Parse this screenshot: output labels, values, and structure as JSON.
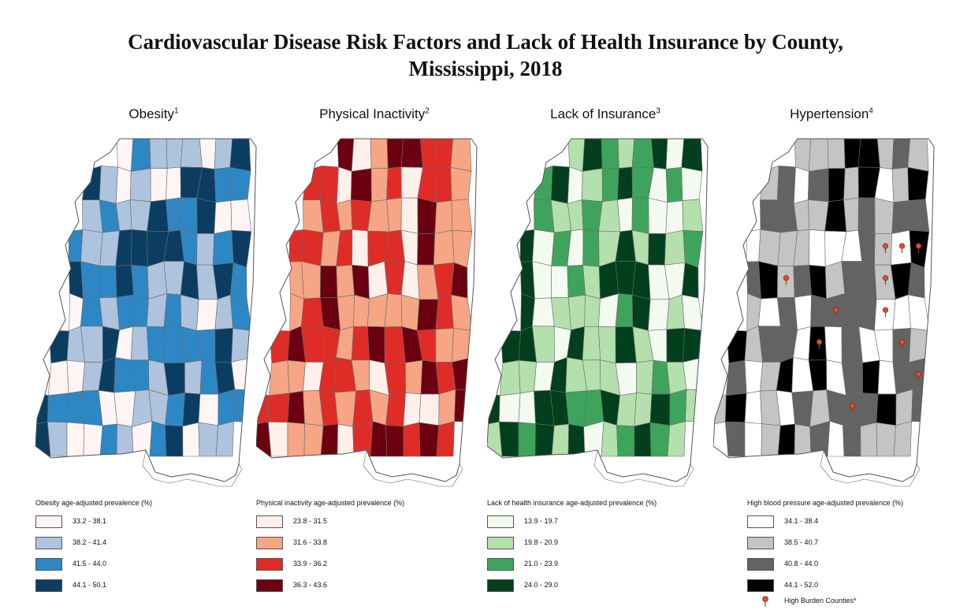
{
  "title": {
    "line1": "Cardiovascular Disease Risk Factors and Lack of Health Insurance by County,",
    "line2": "Mississippi, 2018"
  },
  "panels": [
    {
      "id": "obesity",
      "title": "Obesity",
      "superscript": "1",
      "legend_title": "Obesity age-adjusted prevalence (%)",
      "classes": [
        {
          "label": "33.2 - 38.1",
          "color": "#fff5f5"
        },
        {
          "label": "38.2 - 41.4",
          "color": "#aec3de"
        },
        {
          "label": "41.5 - 44.0",
          "color": "#2d87c4"
        },
        {
          "label": "44.1 - 50.1",
          "color": "#0b3d63"
        }
      ],
      "county_classes": [
        0,
        2,
        1,
        1,
        1,
        0,
        1,
        3,
        3,
        1,
        0,
        1,
        0,
        0,
        3,
        3,
        2,
        2,
        1,
        2,
        1,
        1,
        3,
        2,
        2,
        3,
        0,
        0,
        2,
        1,
        1,
        3,
        3,
        3,
        3,
        2,
        1,
        2,
        3,
        3,
        2,
        2,
        3,
        2,
        1,
        1,
        3,
        1,
        3,
        2,
        0,
        2,
        1,
        2,
        2,
        1,
        2,
        1,
        0,
        1,
        2,
        3,
        1,
        1,
        3,
        0,
        1,
        2,
        2,
        2,
        2,
        3,
        1,
        0,
        0,
        1,
        3,
        2,
        2,
        1,
        3,
        1,
        2,
        3,
        0,
        3,
        2,
        2,
        2,
        0,
        0,
        1,
        1,
        2,
        3,
        0,
        2,
        2,
        3,
        1,
        0,
        0,
        2,
        1,
        0,
        2,
        3,
        0,
        1,
        1,
        1,
        2,
        1,
        2,
        2,
        0,
        0,
        3,
        0,
        2,
        2,
        1,
        1,
        0,
        2,
        2,
        1,
        0,
        1,
        1,
        3,
        3,
        3,
        3,
        0,
        2,
        1,
        2,
        2,
        0
      ]
    },
    {
      "id": "inactivity",
      "title": "Physical Inactivity",
      "superscript": "2",
      "legend_title": "Physical inactivity age-adjusted prevalence (%)",
      "classes": [
        {
          "label": "23.8 - 31.5",
          "color": "#fff0eb"
        },
        {
          "label": "31.6 - 33.8",
          "color": "#f6a585"
        },
        {
          "label": "33.9 - 36.2",
          "color": "#e02c27"
        },
        {
          "label": "36.3 - 43.6",
          "color": "#6b0010"
        }
      ],
      "county_classes": [
        3,
        0,
        1,
        3,
        3,
        2,
        2,
        1,
        2,
        2,
        0,
        3,
        1,
        2,
        0,
        2,
        2,
        1,
        1,
        2,
        1,
        2,
        1,
        1,
        0,
        3,
        1,
        1,
        2,
        2,
        1,
        2,
        0,
        2,
        2,
        0,
        3,
        1,
        1,
        1,
        1,
        3,
        1,
        3,
        0,
        2,
        0,
        1,
        2,
        3,
        1,
        2,
        3,
        1,
        1,
        1,
        1,
        1,
        3,
        2,
        1,
        2,
        3,
        2,
        2,
        1,
        2,
        3,
        2,
        3,
        2,
        1,
        1,
        1,
        1,
        0,
        2,
        2,
        1,
        0,
        2,
        1,
        3,
        2,
        3,
        2,
        2,
        3,
        1,
        2,
        1,
        2,
        1,
        2,
        0,
        0,
        1,
        3,
        3,
        0,
        1,
        1,
        3,
        0,
        2,
        3,
        3,
        2,
        3,
        2,
        2,
        3,
        2,
        2,
        3,
        3,
        2,
        2,
        1,
        2,
        0,
        1,
        2,
        2,
        0,
        0,
        2,
        2,
        1,
        3,
        3,
        3,
        3,
        3,
        1,
        1,
        2,
        0,
        0,
        0
      ]
    },
    {
      "id": "insurance",
      "title": "Lack of Insurance",
      "superscript": "3",
      "legend_title": "Lack of health insurance age-adjusted prevalence (%)",
      "classes": [
        {
          "label": "13.9 - 19.7",
          "color": "#f3fbf1"
        },
        {
          "label": "19.8 - 20.9",
          "color": "#b3e0ac"
        },
        {
          "label": "21.0 - 23.9",
          "color": "#3ea45c"
        },
        {
          "label": "24.0 - 29.0",
          "color": "#013f1d"
        }
      ],
      "county_classes": [
        1,
        3,
        2,
        1,
        2,
        3,
        0,
        3,
        2,
        3,
        0,
        1,
        2,
        3,
        2,
        0,
        2,
        0,
        2,
        1,
        1,
        2,
        1,
        0,
        2,
        0,
        0,
        1,
        3,
        0,
        2,
        0,
        2,
        1,
        3,
        1,
        3,
        1,
        2,
        3,
        0,
        0,
        2,
        1,
        3,
        3,
        3,
        0,
        0,
        3,
        3,
        0,
        1,
        1,
        1,
        0,
        2,
        3,
        0,
        1,
        0,
        3,
        3,
        1,
        0,
        3,
        1,
        1,
        3,
        1,
        0,
        3,
        3,
        1,
        1,
        0,
        3,
        1,
        1,
        1,
        0,
        1,
        2,
        1,
        0,
        3,
        0,
        0,
        3,
        3,
        2,
        2,
        3,
        1,
        1,
        3,
        2,
        1,
        1,
        3,
        2,
        3,
        1,
        3,
        0,
        1,
        2,
        3,
        2,
        1,
        0,
        3,
        2,
        3,
        2,
        0,
        0,
        0,
        2,
        3,
        2,
        3,
        2,
        0,
        1,
        2,
        0,
        2,
        2,
        3,
        3,
        3,
        3,
        3,
        2,
        2,
        0,
        1,
        2,
        0
      ]
    },
    {
      "id": "hypertension",
      "title": "Hypertension",
      "superscript": "4",
      "legend_title": "High blood pressure age-adjusted prevalence (%)",
      "classes": [
        {
          "label": "34.1 - 38.4",
          "color": "#ffffff"
        },
        {
          "label": "38.5 - 40.7",
          "color": "#c4c4c4"
        },
        {
          "label": "40.8 - 44.0",
          "color": "#636363"
        },
        {
          "label": "44.1 - 52.0",
          "color": "#000000"
        }
      ],
      "county_classes": [
        1,
        1,
        1,
        3,
        3,
        1,
        2,
        1,
        1,
        2,
        0,
        2,
        3,
        1,
        3,
        0,
        1,
        3,
        2,
        2,
        1,
        1,
        3,
        1,
        2,
        1,
        2,
        2,
        0,
        1,
        1,
        1,
        0,
        0,
        0,
        2,
        1,
        0,
        3,
        2,
        3,
        1,
        2,
        3,
        1,
        2,
        2,
        1,
        3,
        2,
        1,
        0,
        2,
        0,
        2,
        2,
        2,
        2,
        0,
        0,
        0,
        3,
        1,
        2,
        2,
        0,
        3,
        0,
        2,
        0,
        0,
        2,
        1,
        2,
        0,
        1,
        3,
        0,
        3,
        0,
        2,
        3,
        0,
        2,
        2,
        1,
        3,
        0,
        1,
        0,
        2,
        1,
        2,
        2,
        2,
        3,
        1,
        2,
        0,
        2,
        0,
        1,
        3,
        1,
        2,
        0,
        2,
        1,
        1,
        1,
        2,
        3,
        2,
        3,
        2,
        1,
        1,
        2,
        2,
        1,
        3,
        0,
        0,
        0,
        3,
        1,
        1,
        2,
        2,
        1,
        3,
        1,
        2,
        1,
        1,
        2,
        2,
        2,
        1,
        2
      ],
      "pin_counties": [
        41,
        36,
        37,
        38,
        47,
        58,
        55,
        66,
        71,
        84,
        93,
        112
      ],
      "pin_legend": "High Burden Counties*"
    }
  ]
}
